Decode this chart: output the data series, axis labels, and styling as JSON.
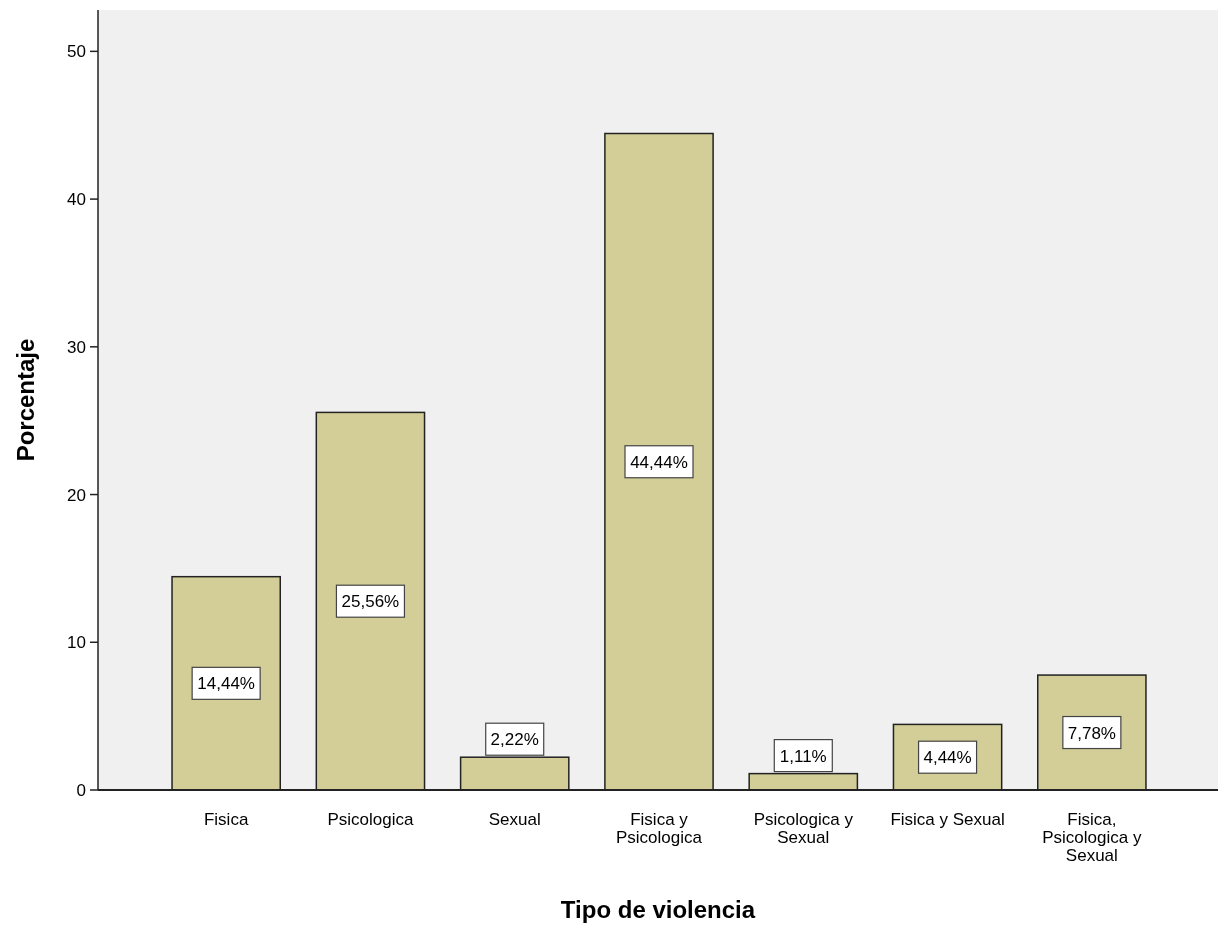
{
  "chart_data": {
    "type": "bar",
    "xlabel": "Tipo de violencia",
    "ylabel": "Porcentaje",
    "categories": [
      "Fisica",
      "Psicologica",
      "Sexual",
      "Fisica y Psicologica",
      "Psicologica y Sexual",
      "Fisica y Sexual",
      "Fisica, Psicologica y Sexual"
    ],
    "values": [
      14.44,
      25.56,
      2.22,
      44.44,
      1.11,
      4.44,
      7.78
    ],
    "value_labels": [
      "14,44%",
      "25,56%",
      "2,22%",
      "44,44%",
      "1,11%",
      "4,44%",
      "7,78%"
    ],
    "color": "#d3ce97",
    "ylim": [
      0,
      52.8
    ],
    "yticks": [
      0,
      10,
      20,
      30,
      40,
      50
    ],
    "grid": false
  }
}
